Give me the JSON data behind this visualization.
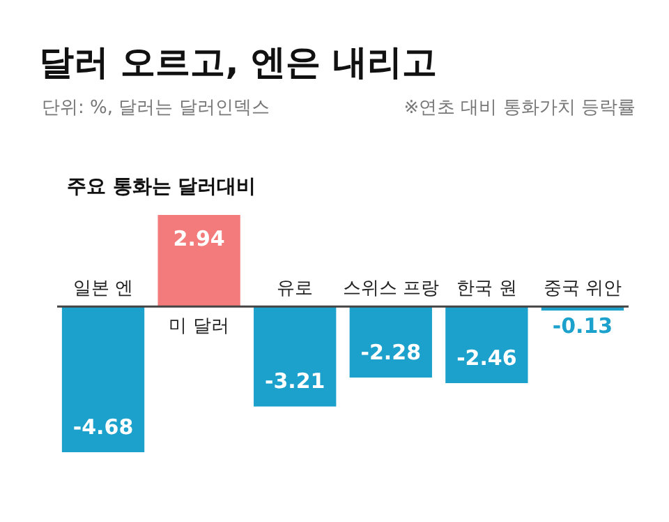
{
  "chart_data": {
    "type": "bar",
    "title": "달러 오르고, 엔은 내리고",
    "subtitle": "단위: %, 달러는 달러인덱스",
    "annotations": [
      "※연초 대비 통화가치 등락률",
      "주요 통화는 달러대비"
    ],
    "categories": [
      "일본 엔",
      "미 달러",
      "유로",
      "스위스 프랑",
      "한국 원",
      "중국 위안"
    ],
    "values": [
      -4.68,
      2.94,
      -3.21,
      -2.28,
      -2.46,
      -0.13
    ],
    "colors": [
      "#1ba1cb",
      "#f47b7b",
      "#1ba1cb",
      "#1ba1cb",
      "#1ba1cb",
      "#1ba1cb"
    ],
    "data_labels": true
  }
}
